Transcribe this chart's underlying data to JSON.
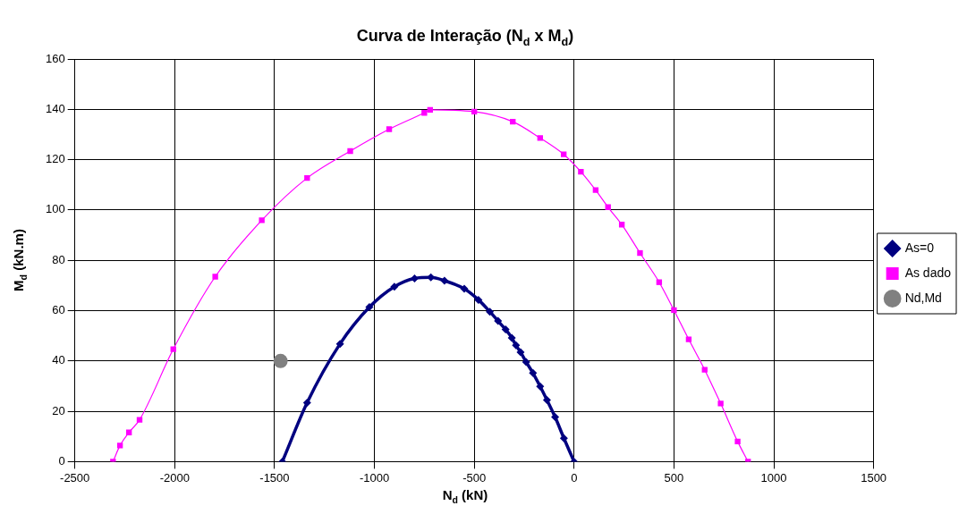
{
  "chart_data": {
    "type": "line",
    "title": "Curva de Interação (N$_{d}$ x M$_{d}$)",
    "xlabel": "N$_{d}$ (kN)",
    "ylabel": "M$_{d}$ (kN.m)",
    "xlim": [
      -2500,
      1500
    ],
    "xticks": [
      -2500,
      -2000,
      -1500,
      -1000,
      -500,
      0,
      500,
      1000,
      1500
    ],
    "ylim": [
      0,
      160
    ],
    "yticks": [
      0,
      20,
      40,
      60,
      80,
      100,
      120,
      140,
      160
    ],
    "grid": true,
    "legend": "right",
    "line_style": "solid",
    "series": [
      {
        "name": "As=0",
        "color": "#000080",
        "marker": "diamond",
        "x": [
          -1461,
          -1337,
          -1172,
          -1025,
          -900,
          -799,
          -717,
          -649,
          -550,
          -479,
          -422,
          -381,
          -343,
          -312,
          -291,
          -268,
          -240,
          -206,
          -170,
          -136,
          -95,
          -51,
          0
        ],
        "values": [
          0,
          23.4,
          46.8,
          61.4,
          69.5,
          72.8,
          73.2,
          71.9,
          68.7,
          64.3,
          59.6,
          55.9,
          52.5,
          49.2,
          46.2,
          43.5,
          39.6,
          35.2,
          29.9,
          24.5,
          17.7,
          9.3,
          0
        ]
      },
      {
        "name": "As dado",
        "color": "#ff00ff",
        "marker": "square",
        "x": [
          -2309,
          -2274,
          -2229,
          -2176,
          -2007,
          -1797,
          -1564,
          -1337,
          -1121,
          -926,
          -750,
          -721,
          -500,
          -307,
          -170,
          -52,
          34,
          108,
          170,
          239,
          330,
          426,
          500,
          574,
          654,
          734,
          819,
          871
        ],
        "values": [
          0,
          6.4,
          11.6,
          16.6,
          44.7,
          73.5,
          95.9,
          112.7,
          123.4,
          132.1,
          138.6,
          139.8,
          139.1,
          135.1,
          128.6,
          122.1,
          115.2,
          107.9,
          101.1,
          94.2,
          82.9,
          71.3,
          60.2,
          48.6,
          36.5,
          23.1,
          8.0,
          0
        ]
      },
      {
        "name": "Nd,Md",
        "type": "scatter",
        "color": "#808080",
        "marker": "circle",
        "x": [
          -1470
        ],
        "values": [
          40
        ]
      }
    ]
  }
}
